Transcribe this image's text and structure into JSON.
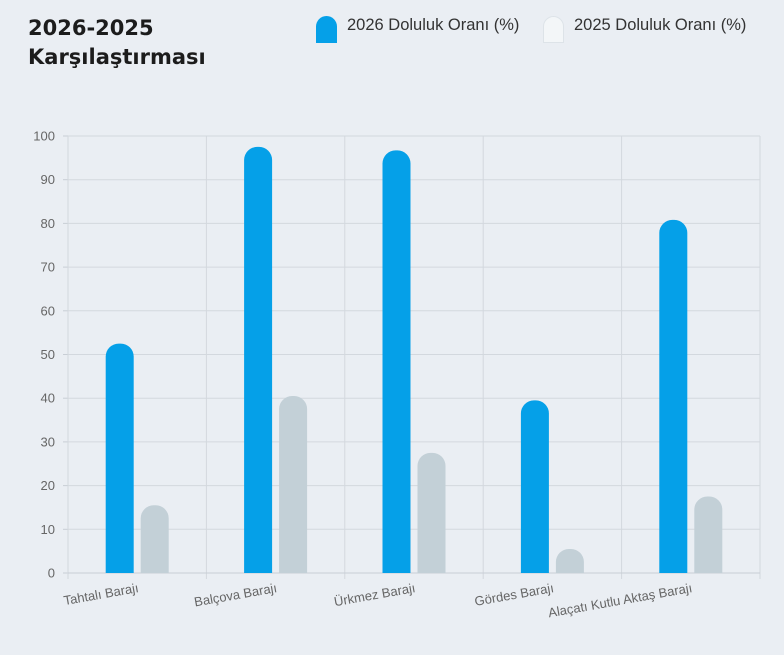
{
  "title": {
    "line1": "2026-2025",
    "line2": "Karşılaştırması"
  },
  "legend": [
    {
      "label": "2026 Doluluk Oranı (%)",
      "color": "#05a0e8"
    },
    {
      "label": "2025 Doluluk Oranı (%)",
      "color": "#c3d0d7"
    }
  ],
  "chart_data": {
    "type": "bar",
    "categories": [
      "Tahtalı Barajı",
      "Balçova Barajı",
      "Ürkmez Barajı",
      "Gördes Barajı",
      "Alaçatı Kutlu Aktaş Barajı"
    ],
    "series": [
      {
        "name": "2026 Doluluk Oranı (%)",
        "values": [
          52.5,
          97.5,
          96.7,
          39.5,
          80.8
        ],
        "color": "#05a0e8"
      },
      {
        "name": "2025 Doluluk Oranı (%)",
        "values": [
          15.5,
          40.5,
          27.5,
          5.5,
          17.5
        ],
        "color": "#c3d0d7"
      }
    ],
    "ylim": [
      0,
      100
    ],
    "yticks": [
      "0",
      "10",
      "20",
      "30",
      "40",
      "50",
      "60",
      "70",
      "80",
      "90",
      "100"
    ],
    "grid": true,
    "legend_position": "top-right"
  }
}
